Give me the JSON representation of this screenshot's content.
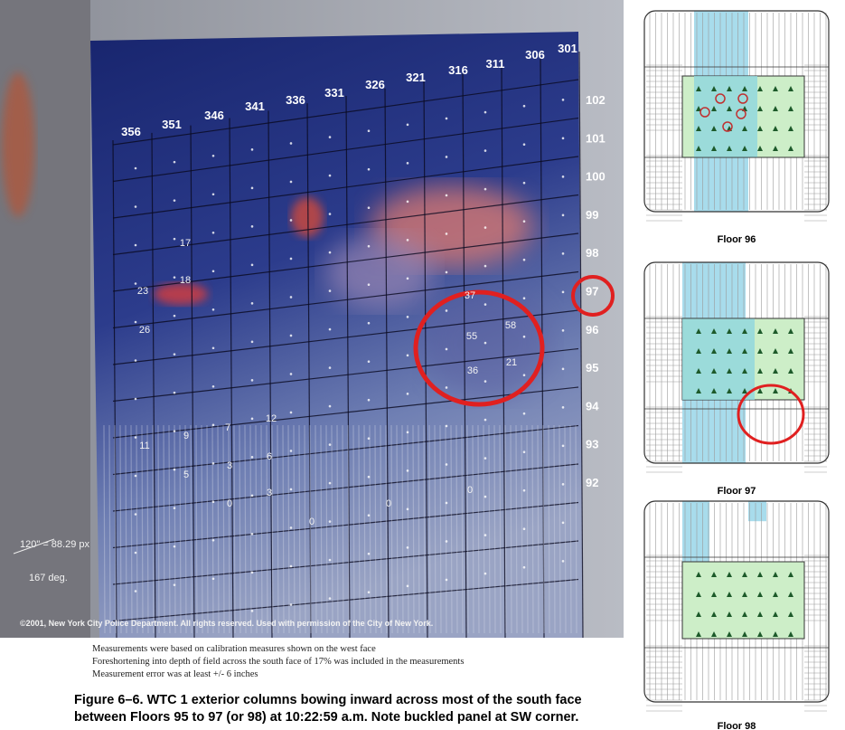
{
  "photo": {
    "column_labels": [
      "356",
      "351",
      "346",
      "341",
      "336",
      "331",
      "326",
      "321",
      "316",
      "311",
      "306",
      "301"
    ],
    "floor_labels": [
      "102",
      "101",
      "100",
      "99",
      "98",
      "97",
      "96",
      "95",
      "94",
      "93",
      "92"
    ],
    "measurements": [
      "17",
      "18",
      "23",
      "26",
      "37",
      "55",
      "58",
      "36",
      "21",
      "12",
      "7",
      "9",
      "11",
      "5",
      "3",
      "6",
      "3",
      "0",
      "0",
      "0",
      "0"
    ],
    "scale_note": "120\" = 88.29 px",
    "angle_note": "167 deg.",
    "copyright": "©2001, New York City Police Department. All rights reserved. Used with permission of the City of New York."
  },
  "notes": [
    "Measurements were based on calibration measures shown on the west face",
    "Foreshortening into depth of field across the south face of 17% was included in the measurements",
    "Measurement error was at least +/- 6 inches"
  ],
  "caption": [
    "Figure 6–6. WTC 1 exterior columns bowing inward across most of the south face",
    "between Floors 95 to 97 (or 98) at 10:22:59 a.m. Note buckled panel at SW corner."
  ],
  "plans": [
    "Floor 96",
    "Floor 97",
    "Floor 98"
  ]
}
